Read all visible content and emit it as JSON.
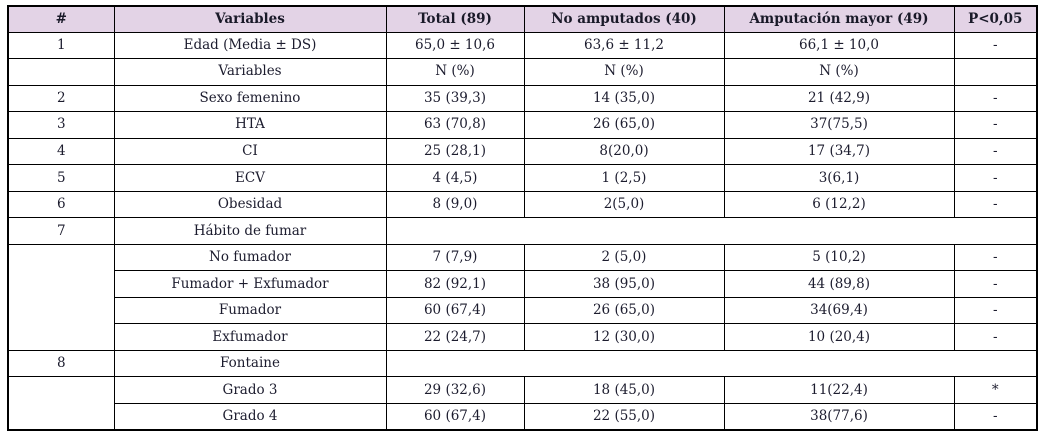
{
  "colors": {
    "header_background": "#e3d3e6",
    "border": "#000000",
    "text": "#1c1c2e",
    "page_background": "#ffffff"
  },
  "table": {
    "header": [
      "#",
      "Variables",
      "Total (89)",
      "No amputados (40)",
      "Amputación mayor (49)",
      "P<0,05"
    ],
    "rows": [
      [
        {
          "t": "1"
        },
        {
          "t": "Edad (Media ± DS)"
        },
        {
          "t": "65,0 ± 10,6"
        },
        {
          "t": "63,6 ± 11,2"
        },
        {
          "t": "66,1 ± 10,0"
        },
        {
          "t": "-"
        }
      ],
      [
        {
          "t": ""
        },
        {
          "t": "Variables"
        },
        {
          "t": "N (%)"
        },
        {
          "t": "N (%)"
        },
        {
          "t": "N (%)"
        },
        {
          "t": ""
        }
      ],
      [
        {
          "t": "2"
        },
        {
          "t": "Sexo femenino"
        },
        {
          "t": "35 (39,3)"
        },
        {
          "t": "14 (35,0)"
        },
        {
          "t": "21 (42,9)"
        },
        {
          "t": "-"
        }
      ],
      [
        {
          "t": "3"
        },
        {
          "t": "HTA"
        },
        {
          "t": "63 (70,8)"
        },
        {
          "t": "26 (65,0)"
        },
        {
          "t": "37(75,5)"
        },
        {
          "t": "-"
        }
      ],
      [
        {
          "t": "4"
        },
        {
          "t": "CI"
        },
        {
          "t": "25 (28,1)"
        },
        {
          "t": "8(20,0)"
        },
        {
          "t": "17 (34,7)"
        },
        {
          "t": "-"
        }
      ],
      [
        {
          "t": "5"
        },
        {
          "t": "ECV"
        },
        {
          "t": "4 (4,5)"
        },
        {
          "t": "1 (2,5)"
        },
        {
          "t": "3(6,1)"
        },
        {
          "t": "-"
        }
      ],
      [
        {
          "t": "6"
        },
        {
          "t": "Obesidad"
        },
        {
          "t": "8 (9,0)"
        },
        {
          "t": "2(5,0)"
        },
        {
          "t": "6 (12,2)"
        },
        {
          "t": "-"
        }
      ],
      [
        {
          "t": "7"
        },
        {
          "t": "Hábito de fumar"
        },
        {
          "t": "",
          "colspan": 4
        }
      ],
      [
        {
          "t": "",
          "rowspan": 4
        },
        {
          "t": "No fumador"
        },
        {
          "t": "7 (7,9)"
        },
        {
          "t": "2 (5,0)"
        },
        {
          "t": "5 (10,2)"
        },
        {
          "t": "-"
        }
      ],
      [
        {
          "t": "Fumador + Exfumador"
        },
        {
          "t": "82 (92,1)"
        },
        {
          "t": "38 (95,0)"
        },
        {
          "t": "44 (89,8)"
        },
        {
          "t": "-"
        }
      ],
      [
        {
          "t": "Fumador"
        },
        {
          "t": "60 (67,4)"
        },
        {
          "t": "26 (65,0)"
        },
        {
          "t": "34(69,4)"
        },
        {
          "t": "-"
        }
      ],
      [
        {
          "t": "Exfumador"
        },
        {
          "t": "22 (24,7)"
        },
        {
          "t": "12 (30,0)"
        },
        {
          "t": "10 (20,4)"
        },
        {
          "t": "-"
        }
      ],
      [
        {
          "t": "8"
        },
        {
          "t": "Fontaine"
        },
        {
          "t": "",
          "colspan": 4
        }
      ],
      [
        {
          "t": "",
          "rowspan": 2
        },
        {
          "t": "Grado 3"
        },
        {
          "t": "29 (32,6)"
        },
        {
          "t": "18 (45,0)"
        },
        {
          "t": "11(22,4)"
        },
        {
          "t": "*"
        }
      ],
      [
        {
          "t": "Grado 4"
        },
        {
          "t": "60 (67,4)"
        },
        {
          "t": "22 (55,0)"
        },
        {
          "t": "38(77,6)"
        },
        {
          "t": "-"
        }
      ]
    ]
  }
}
